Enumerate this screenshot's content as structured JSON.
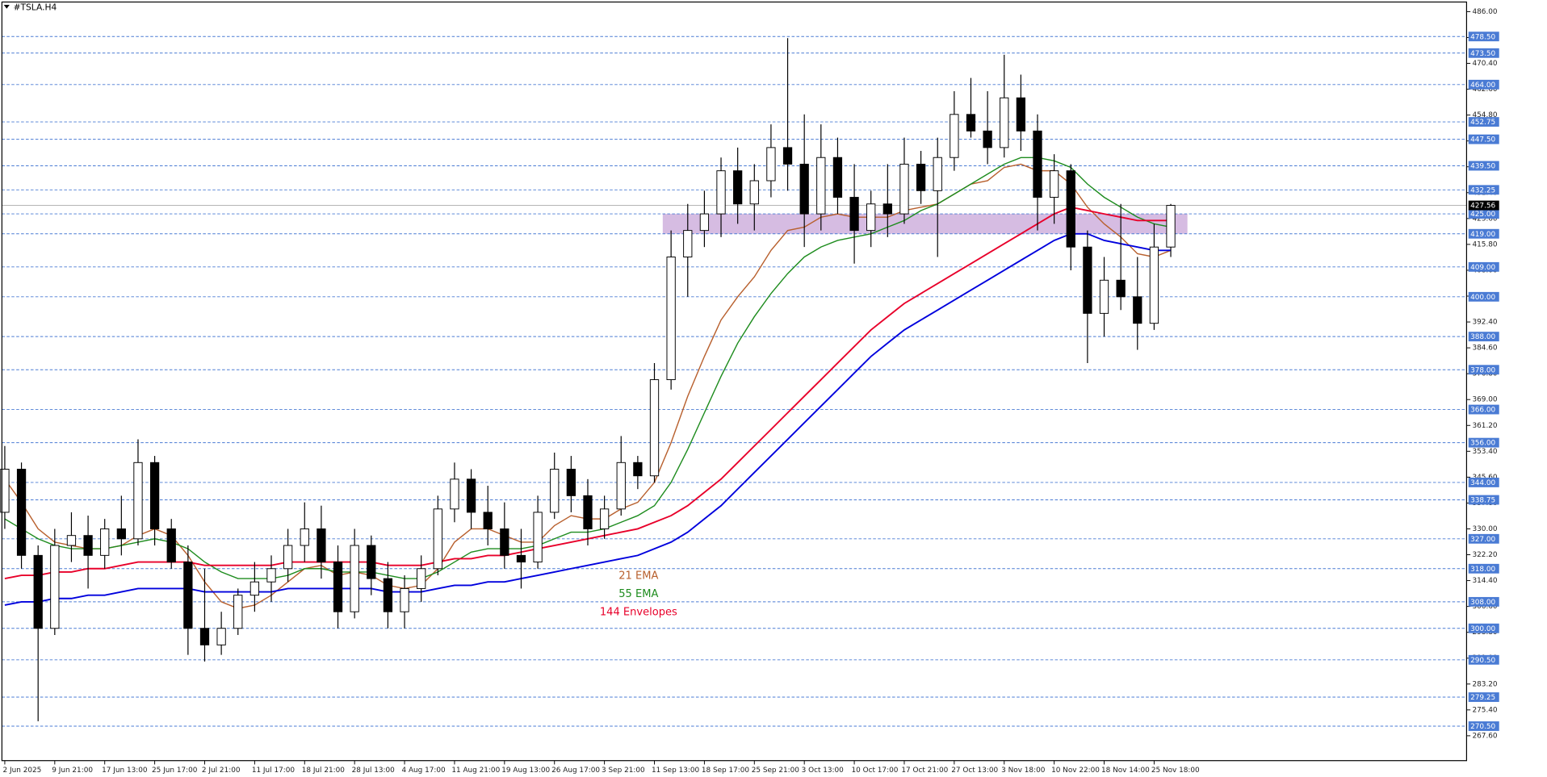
{
  "chart_data": {
    "type": "candlestick",
    "title": "#TSLA.H4",
    "categories": [
      "2 Jun 2025",
      null,
      null,
      "9 Jun 21:00",
      null,
      null,
      "17 Jun 13:00",
      null,
      null,
      "25 Jun 17:00",
      null,
      null,
      "2 Jul 21:00",
      null,
      null,
      "11 Jul 17:00",
      null,
      null,
      "18 Jul 21:00",
      null,
      null,
      "28 Jul 13:00",
      null,
      null,
      "4 Aug 17:00",
      null,
      null,
      "11 Aug 21:00",
      null,
      null,
      "19 Aug 13:00",
      null,
      null,
      "26 Aug 17:00",
      null,
      null,
      "3 Sep 21:00",
      null,
      null,
      "11 Sep 13:00",
      null,
      null,
      "18 Sep 17:00",
      null,
      null,
      "25 Sep 21:00",
      null,
      null,
      "3 Oct 13:00",
      null,
      null,
      "10 Oct 17:00",
      null,
      null,
      "17 Oct 21:00",
      null,
      null,
      "27 Oct 13:00",
      null,
      null,
      "3 Nov 18:00",
      null,
      null,
      "10 Nov 22:00",
      null,
      null,
      "18 Nov 14:00",
      null,
      null,
      "25 Nov 18:00",
      null
    ],
    "ohlc": {
      "open": [
        335,
        348,
        322,
        300,
        325,
        328,
        322,
        330,
        327,
        350,
        330,
        320,
        300,
        295,
        300,
        310,
        314,
        318,
        325,
        330,
        320,
        305,
        325,
        315,
        305,
        312,
        318,
        336,
        345,
        335,
        330,
        322,
        320,
        335,
        348,
        340,
        330,
        336,
        350,
        346,
        375,
        412,
        420,
        425,
        438,
        428,
        435,
        445,
        440,
        425,
        442,
        430,
        420,
        428,
        425,
        440,
        432,
        442,
        455,
        450,
        445,
        460,
        450,
        430,
        438,
        415,
        395,
        405,
        400,
        392,
        415
      ],
      "high": [
        355,
        350,
        325,
        330,
        335,
        334,
        333,
        340,
        357,
        352,
        333,
        325,
        318,
        305,
        312,
        320,
        322,
        330,
        338,
        337,
        325,
        330,
        328,
        320,
        316,
        322,
        340,
        350,
        348,
        343,
        338,
        330,
        340,
        353,
        352,
        345,
        340,
        358,
        352,
        380,
        420,
        428,
        432,
        442,
        445,
        440,
        452,
        478,
        455,
        452,
        448,
        440,
        432,
        440,
        448,
        444,
        448,
        462,
        466,
        462,
        473,
        467,
        455,
        443,
        440,
        420,
        412,
        428,
        412,
        422,
        428
      ],
      "low": [
        330,
        318,
        272,
        298,
        320,
        312,
        318,
        322,
        325,
        325,
        318,
        292,
        290,
        292,
        298,
        305,
        308,
        314,
        320,
        315,
        300,
        303,
        310,
        300,
        300,
        308,
        316,
        332,
        330,
        325,
        318,
        312,
        318,
        333,
        335,
        325,
        327,
        334,
        342,
        344,
        372,
        400,
        415,
        418,
        422,
        420,
        430,
        432,
        415,
        420,
        425,
        410,
        415,
        418,
        422,
        428,
        412,
        438,
        448,
        440,
        442,
        444,
        420,
        422,
        408,
        380,
        388,
        396,
        384,
        390,
        412
      ],
      "close": [
        348,
        322,
        300,
        325,
        328,
        322,
        330,
        327,
        350,
        330,
        320,
        300,
        295,
        300,
        310,
        314,
        318,
        325,
        330,
        320,
        305,
        325,
        315,
        305,
        312,
        318,
        336,
        345,
        335,
        330,
        322,
        320,
        335,
        348,
        340,
        330,
        336,
        350,
        346,
        375,
        412,
        420,
        425,
        438,
        428,
        435,
        445,
        440,
        425,
        442,
        430,
        420,
        428,
        425,
        440,
        432,
        442,
        455,
        450,
        445,
        460,
        450,
        430,
        438,
        415,
        395,
        405,
        400,
        392,
        415,
        427.56
      ]
    },
    "up_color": "#ffffff",
    "down_color": "#000000",
    "series": [
      {
        "name": "21 EMA",
        "color": "#b8602e",
        "values": [
          345,
          338,
          330,
          326,
          325,
          324,
          324,
          325,
          328,
          330,
          328,
          322,
          314,
          308,
          306,
          307,
          310,
          314,
          318,
          319,
          316,
          317,
          316,
          313,
          312,
          313,
          318,
          326,
          330,
          330,
          328,
          326,
          326,
          331,
          334,
          333,
          333,
          336,
          338,
          344,
          356,
          370,
          382,
          393,
          400,
          406,
          414,
          420,
          421,
          424,
          425,
          424,
          424,
          424,
          426,
          427,
          428,
          431,
          434,
          435,
          439,
          440,
          438,
          438,
          434,
          427,
          422,
          418,
          413,
          412,
          414
        ]
      },
      {
        "name": "55 EMA",
        "color": "#1e8c1e",
        "values": [
          333,
          330,
          327,
          325,
          324,
          324,
          324,
          325,
          326,
          327,
          326,
          324,
          320,
          317,
          315,
          315,
          315,
          316,
          318,
          318,
          317,
          317,
          317,
          316,
          315,
          315,
          317,
          320,
          323,
          324,
          324,
          324,
          325,
          327,
          329,
          329,
          330,
          332,
          334,
          337,
          344,
          354,
          365,
          376,
          386,
          394,
          401,
          407,
          412,
          415,
          417,
          418,
          419,
          421,
          423,
          426,
          428,
          431,
          434,
          437,
          440,
          442,
          442,
          441,
          439,
          434,
          430,
          427,
          424,
          422,
          421
        ]
      },
      {
        "name": "144 Envelopes",
        "color": "#e8002a",
        "values": [
          315,
          316,
          316,
          317,
          317,
          318,
          318,
          319,
          320,
          320,
          320,
          320,
          319,
          319,
          319,
          319,
          319,
          320,
          320,
          320,
          320,
          320,
          320,
          319,
          319,
          319,
          320,
          321,
          321,
          322,
          322,
          323,
          324,
          325,
          326,
          327,
          328,
          329,
          330,
          332,
          334,
          337,
          341,
          345,
          350,
          355,
          360,
          365,
          370,
          375,
          380,
          385,
          390,
          394,
          398,
          401,
          404,
          407,
          410,
          413,
          416,
          419,
          422,
          425,
          427,
          426,
          425,
          424,
          423,
          423,
          423
        ]
      },
      {
        "color": "#0000dd",
        "values": [
          307,
          308,
          308,
          309,
          309,
          310,
          310,
          311,
          312,
          312,
          312,
          312,
          311,
          311,
          311,
          311,
          311,
          312,
          312,
          312,
          312,
          312,
          312,
          311,
          311,
          311,
          312,
          313,
          313,
          314,
          314,
          315,
          316,
          317,
          318,
          319,
          320,
          321,
          322,
          324,
          326,
          329,
          333,
          337,
          342,
          347,
          352,
          357,
          362,
          367,
          372,
          377,
          382,
          386,
          390,
          393,
          396,
          399,
          402,
          405,
          408,
          411,
          414,
          417,
          419,
          419,
          417,
          416,
          415,
          414,
          414
        ]
      }
    ],
    "levels": [
      {
        "value": 478.5,
        "label": "478.50"
      },
      {
        "value": 473.5,
        "label": "473.50"
      },
      {
        "value": 464,
        "label": "464.00"
      },
      {
        "value": 452.75,
        "label": "452.75"
      },
      {
        "value": 447.5,
        "label": "447.50"
      },
      {
        "value": 439.5,
        "label": "439.50"
      },
      {
        "value": 432.25,
        "label": "432.25"
      },
      {
        "value": 425,
        "label": "425.00"
      },
      {
        "value": 419,
        "label": "419.00"
      },
      {
        "value": 409,
        "label": "409.00"
      },
      {
        "value": 400,
        "label": "400.00"
      },
      {
        "value": 388,
        "label": "388.00"
      },
      {
        "value": 378,
        "label": "378.00"
      },
      {
        "value": 366,
        "label": "366.00"
      },
      {
        "value": 356,
        "label": "356.00"
      },
      {
        "value": 344,
        "label": "344.00"
      },
      {
        "value": 338.75,
        "label": "338.75"
      },
      {
        "value": 327,
        "label": "327.00"
      },
      {
        "value": 318,
        "label": "318.00"
      },
      {
        "value": 308,
        "label": "308.00"
      },
      {
        "value": 300,
        "label": "300.00"
      },
      {
        "value": 290.5,
        "label": "290.50"
      },
      {
        "value": 279.25,
        "label": "279.25"
      },
      {
        "value": 270.5,
        "label": "270.50"
      }
    ],
    "level_color": "#4a7bd4",
    "last_price": 427.56,
    "zone": {
      "low": 419,
      "high": 425,
      "color": "#c8a6d8"
    },
    "ylim": [
      260.1,
      488.9
    ],
    "yticks": [
      {
        "value": 486,
        "label": "486.00"
      },
      {
        "value": 478.2,
        "label": "478.20"
      },
      {
        "value": 470.4,
        "label": "470.40"
      },
      {
        "value": 462.6,
        "label": "462.60"
      },
      {
        "value": 454.8,
        "label": "454.80"
      },
      {
        "value": 447,
        "label": "447.00"
      },
      {
        "value": 439.2,
        "label": "439.20"
      },
      {
        "value": 431.4,
        "label": "431.40"
      },
      {
        "value": 423.6,
        "label": "423.60"
      },
      {
        "value": 415.8,
        "label": "415.80"
      },
      {
        "value": 408,
        "label": "408.00"
      },
      {
        "value": 400.2,
        "label": "400.20"
      },
      {
        "value": 392.4,
        "label": "392.40"
      },
      {
        "value": 384.6,
        "label": "384.60"
      },
      {
        "value": 376.8,
        "label": "376.80"
      },
      {
        "value": 369,
        "label": "369.00"
      },
      {
        "value": 361.2,
        "label": "361.20"
      },
      {
        "value": 353.4,
        "label": "353.40"
      },
      {
        "value": 345.6,
        "label": "345.60"
      },
      {
        "value": 337.8,
        "label": "337.80"
      },
      {
        "value": 330,
        "label": "330.00"
      },
      {
        "value": 322.2,
        "label": "322.20"
      },
      {
        "value": 314.4,
        "label": "314.40"
      },
      {
        "value": 306.6,
        "label": "306.60"
      },
      {
        "value": 298.8,
        "label": "298.80"
      },
      {
        "value": 291,
        "label": "291.00"
      },
      {
        "value": 283.2,
        "label": "283.20"
      },
      {
        "value": 275.4,
        "label": "275.40"
      },
      {
        "value": 267.6,
        "label": "267.60"
      }
    ]
  }
}
